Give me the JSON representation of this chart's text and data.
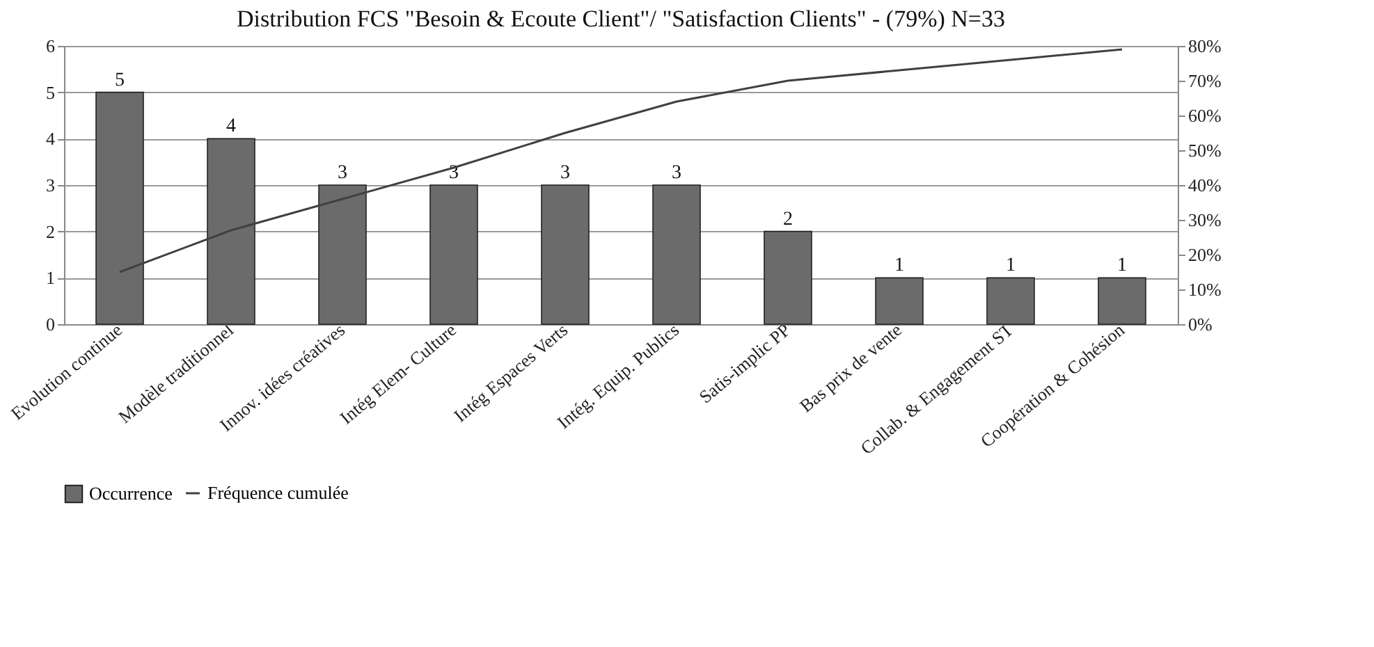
{
  "chart_data": {
    "type": "bar",
    "title": "Distribution FCS  \"Besoin & Ecoute Client\"/ \"Satisfaction Clients\" - (79%) N=33",
    "categories": [
      "Evolution continue",
      "Modèle traditionnel",
      "Innov. idées créatives",
      "Intég Elem- Culture",
      "Intég Espaces Verts",
      "Intég. Equip. Publics",
      "Satis-implic PP",
      "Bas prix de vente",
      "Collab. & Engagement ST",
      "Coopération & Cohésion"
    ],
    "series": [
      {
        "name": "Occurrence",
        "color": "#6b6b6b",
        "values": [
          5,
          4,
          3,
          3,
          3,
          3,
          2,
          1,
          1,
          1
        ],
        "value_labels": [
          "5",
          "4",
          "3",
          "3",
          "3",
          "3",
          "2",
          "1",
          "1",
          "1"
        ]
      },
      {
        "name": "Fréquence cumulée",
        "color": "#404040",
        "type": "line",
        "axis": "y2",
        "values": [
          15,
          27,
          36,
          45,
          55,
          64,
          70,
          73,
          76,
          79
        ]
      }
    ],
    "ylim": [
      0,
      6
    ],
    "yticks": [
      0,
      1,
      2,
      3,
      4,
      5,
      6
    ],
    "y2lim": [
      0,
      80
    ],
    "y2ticks": [
      {
        "value": 0,
        "label": "0%"
      },
      {
        "value": 10,
        "label": "10%"
      },
      {
        "value": 20,
        "label": "20%"
      },
      {
        "value": 30,
        "label": "30%"
      },
      {
        "value": 40,
        "label": "40%"
      },
      {
        "value": 50,
        "label": "50%"
      },
      {
        "value": 60,
        "label": "60%"
      },
      {
        "value": 70,
        "label": "70%"
      },
      {
        "value": 80,
        "label": "80%"
      }
    ],
    "grid": "y",
    "legend": "bottom",
    "marker": "none",
    "line_style": "solid"
  }
}
